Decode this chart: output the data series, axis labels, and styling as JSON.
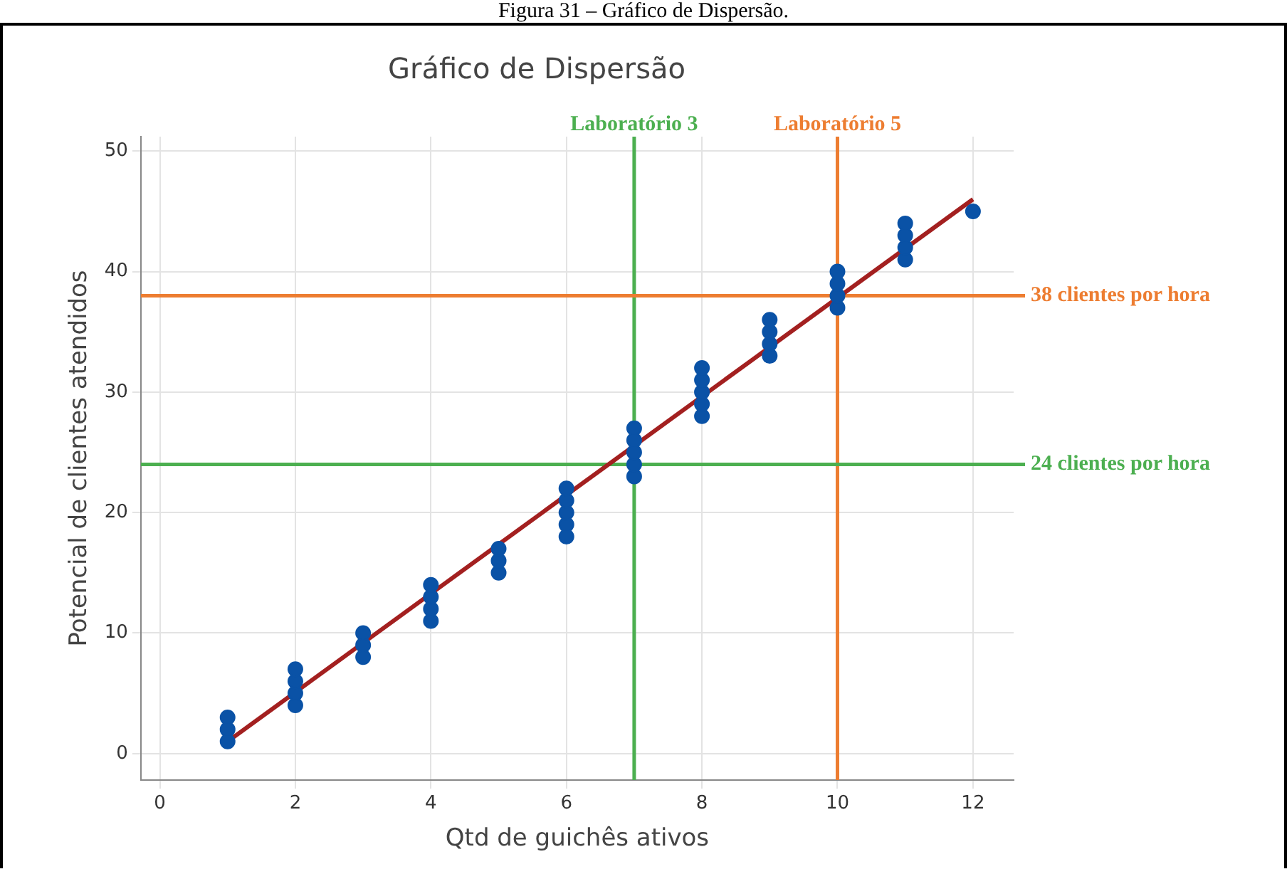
{
  "chart_data": {
    "type": "scatter",
    "title": "Gráfico de Dispersão",
    "xlabel": "Qtd de guichês ativos",
    "ylabel": "Potencial de clientes atendidos",
    "annotations": [
      "Figura 31 – Gráfico de Dispersão."
    ],
    "series": [
      {
        "color": "#0a52a6",
        "marker": "circle",
        "x": [
          1,
          1,
          1,
          2,
          2,
          2,
          2,
          3,
          3,
          3,
          4,
          4,
          4,
          4,
          5,
          5,
          5,
          6,
          6,
          6,
          6,
          6,
          7,
          7,
          7,
          7,
          7,
          8,
          8,
          8,
          8,
          8,
          9,
          9,
          9,
          9,
          10,
          10,
          10,
          10,
          11,
          11,
          11,
          11,
          12
        ],
        "values": [
          1,
          2,
          3,
          4,
          5,
          6,
          7,
          8,
          9,
          10,
          11,
          12,
          13,
          14,
          15,
          16,
          17,
          18,
          19,
          20,
          21,
          22,
          23,
          24,
          25,
          26,
          27,
          28,
          29,
          30,
          31,
          32,
          33,
          34,
          35,
          36,
          37,
          38,
          39,
          40,
          41,
          42,
          43,
          44,
          45
        ]
      },
      {
        "type": "line",
        "marker": "none",
        "color": "#a32020",
        "x": [
          1,
          12
        ],
        "values": [
          1,
          46
        ]
      }
    ],
    "xlim": [
      -0.28,
      12.6
    ],
    "xticks": [
      0,
      2,
      4,
      6,
      8,
      10,
      12
    ],
    "ylim": [
      -2.2,
      51.2
    ],
    "yticks": [
      0,
      10,
      20,
      30,
      40,
      50
    ],
    "ref_lines": [
      {
        "axis": "x",
        "value": 7,
        "label": "Laboratório 3",
        "color": "#4caf50"
      },
      {
        "axis": "x",
        "value": 10,
        "label": "Laboratório 5",
        "color": "#ed7d31"
      },
      {
        "axis": "y",
        "value": 38,
        "label": "38 clientes por hora",
        "color": "#ed7d31"
      },
      {
        "axis": "y",
        "value": 24,
        "label": "24 clientes por hora",
        "color": "#4caf50"
      }
    ],
    "grid": true,
    "legend": false
  }
}
